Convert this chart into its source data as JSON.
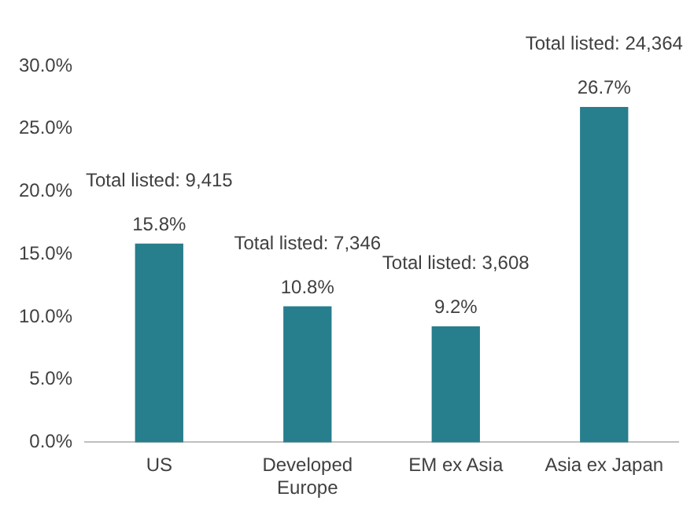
{
  "chart_data": {
    "type": "bar",
    "categories": [
      "US",
      "Developed Europe",
      "EM ex Asia",
      "Asia ex Japan"
    ],
    "values": [
      15.8,
      10.8,
      9.2,
      26.7
    ],
    "color": "#277e8d",
    "value_labels": [
      "15.8%",
      "10.8%",
      "9.2%",
      "26.7%"
    ],
    "ylim": [
      0,
      30
    ],
    "yticks": [
      {
        "value": 0,
        "label": "0.0%"
      },
      {
        "value": 5,
        "label": "5.0%"
      },
      {
        "value": 10,
        "label": "10.0%"
      },
      {
        "value": 15,
        "label": "15.0%"
      },
      {
        "value": 20,
        "label": "20.0%"
      },
      {
        "value": 25,
        "label": "25.0%"
      },
      {
        "value": 30,
        "label": "30.0%"
      }
    ],
    "annotations": [
      "Total listed: 9,415",
      "Total listed: 7,346",
      "Total listed: 3,608",
      "Total listed: 24,364"
    ],
    "grid": false,
    "legend": false
  }
}
